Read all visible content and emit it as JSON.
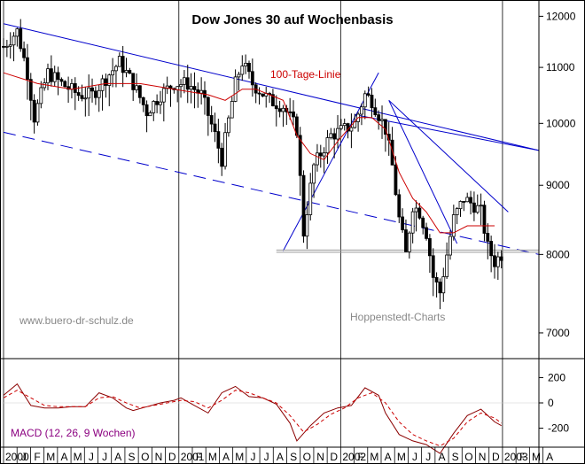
{
  "chart_data": {
    "type": "candlestick",
    "title": "Dow Jones 30 auf Wochenbasis",
    "watermark_left": "www.buero-dr-schulz.de",
    "watermark_right": "Hoppenstedt-Charts",
    "ma_label": "100-Tage-Linie",
    "macd_label": "MACD (12, 26, 9 Wochen)",
    "y_scale": "log",
    "ylim": [
      6700,
      12300
    ],
    "y_ticks": [
      {
        "value": 7000,
        "label": "7000"
      },
      {
        "value": 8000,
        "label": "8000"
      },
      {
        "value": 9000,
        "label": "9000"
      },
      {
        "value": 10000,
        "label": "10000"
      },
      {
        "value": 11000,
        "label": "11000"
      },
      {
        "value": 12000,
        "label": "12000"
      }
    ],
    "macd_ylim": [
      -350,
      350
    ],
    "macd_ticks": [
      {
        "value": 200,
        "label": "200"
      },
      {
        "value": 0,
        "label": "0"
      },
      {
        "value": -200,
        "label": "-200"
      }
    ],
    "month_labels": [
      "2000",
      "J",
      "F",
      "M",
      "A",
      "M",
      "J",
      "J",
      "A",
      "S",
      "O",
      "N",
      "D",
      "2001",
      "F",
      "M",
      "A",
      "M",
      "J",
      "J",
      "A",
      "S",
      "O",
      "N",
      "D",
      "2002",
      "F",
      "M",
      "A",
      "M",
      "J",
      "J",
      "A",
      "S",
      "O",
      "N",
      "D",
      "2003",
      "F",
      "M",
      "A"
    ],
    "weekly_close": [
      {
        "week": 0,
        "value": 11400
      },
      {
        "week": 4,
        "value": 11700
      },
      {
        "week": 7,
        "value": 10900
      },
      {
        "week": 9,
        "value": 10100
      },
      {
        "week": 13,
        "value": 10900
      },
      {
        "week": 17,
        "value": 10700
      },
      {
        "week": 22,
        "value": 10500
      },
      {
        "week": 26,
        "value": 10500
      },
      {
        "week": 30,
        "value": 10800
      },
      {
        "week": 34,
        "value": 11100
      },
      {
        "week": 38,
        "value": 10700
      },
      {
        "week": 42,
        "value": 10200
      },
      {
        "week": 46,
        "value": 10500
      },
      {
        "week": 50,
        "value": 10700
      },
      {
        "week": 54,
        "value": 10700
      },
      {
        "week": 58,
        "value": 10500
      },
      {
        "week": 62,
        "value": 9800
      },
      {
        "week": 64,
        "value": 9400
      },
      {
        "week": 68,
        "value": 10700
      },
      {
        "week": 70,
        "value": 11100
      },
      {
        "week": 73,
        "value": 10700
      },
      {
        "week": 78,
        "value": 10400
      },
      {
        "week": 82,
        "value": 10300
      },
      {
        "week": 86,
        "value": 9900
      },
      {
        "week": 88,
        "value": 8300
      },
      {
        "week": 91,
        "value": 9300
      },
      {
        "week": 96,
        "value": 9800
      },
      {
        "week": 100,
        "value": 9900
      },
      {
        "week": 103,
        "value": 10000
      },
      {
        "week": 106,
        "value": 10500
      },
      {
        "week": 108,
        "value": 10400
      },
      {
        "week": 112,
        "value": 9900
      },
      {
        "week": 114,
        "value": 9300
      },
      {
        "week": 116,
        "value": 8500
      },
      {
        "week": 118,
        "value": 8000
      },
      {
        "week": 120,
        "value": 8700
      },
      {
        "week": 122,
        "value": 8600
      },
      {
        "week": 124,
        "value": 8300
      },
      {
        "week": 126,
        "value": 7700
      },
      {
        "week": 128,
        "value": 7500
      },
      {
        "week": 130,
        "value": 8000
      },
      {
        "week": 132,
        "value": 8500
      },
      {
        "week": 135,
        "value": 8800
      },
      {
        "week": 138,
        "value": 8700
      },
      {
        "week": 140,
        "value": 8600
      },
      {
        "week": 142,
        "value": 8100
      },
      {
        "week": 144,
        "value": 7900
      },
      {
        "week": 146,
        "value": 8000
      }
    ],
    "moving_average_100d": [
      {
        "week": 0,
        "value": 10900
      },
      {
        "week": 10,
        "value": 10700
      },
      {
        "week": 20,
        "value": 10600
      },
      {
        "week": 30,
        "value": 10700
      },
      {
        "week": 40,
        "value": 10700
      },
      {
        "week": 50,
        "value": 10600
      },
      {
        "week": 60,
        "value": 10500
      },
      {
        "week": 65,
        "value": 10400
      },
      {
        "week": 70,
        "value": 10600
      },
      {
        "week": 74,
        "value": 10600
      },
      {
        "week": 78,
        "value": 10500
      },
      {
        "week": 82,
        "value": 10400
      },
      {
        "week": 86,
        "value": 9800
      },
      {
        "week": 90,
        "value": 9500
      },
      {
        "week": 94,
        "value": 9400
      },
      {
        "week": 98,
        "value": 9700
      },
      {
        "week": 104,
        "value": 10100
      },
      {
        "week": 108,
        "value": 10100
      },
      {
        "week": 112,
        "value": 9900
      },
      {
        "week": 116,
        "value": 9200
      },
      {
        "week": 120,
        "value": 8800
      },
      {
        "week": 124,
        "value": 8600
      },
      {
        "week": 128,
        "value": 8300
      },
      {
        "week": 132,
        "value": 8300
      },
      {
        "week": 136,
        "value": 8400
      },
      {
        "week": 140,
        "value": 8400
      },
      {
        "week": 144,
        "value": 8400
      }
    ],
    "macd": [
      {
        "week": 0,
        "value": 60
      },
      {
        "week": 4,
        "value": 150
      },
      {
        "week": 8,
        "value": -20
      },
      {
        "week": 12,
        "value": -40
      },
      {
        "week": 16,
        "value": -40
      },
      {
        "week": 20,
        "value": -30
      },
      {
        "week": 24,
        "value": -30
      },
      {
        "week": 28,
        "value": 80
      },
      {
        "week": 32,
        "value": 40
      },
      {
        "week": 36,
        "value": -40
      },
      {
        "week": 38,
        "value": -60
      },
      {
        "week": 42,
        "value": -30
      },
      {
        "week": 46,
        "value": 0
      },
      {
        "week": 50,
        "value": 20
      },
      {
        "week": 52,
        "value": 40
      },
      {
        "week": 56,
        "value": -20
      },
      {
        "week": 60,
        "value": -80
      },
      {
        "week": 64,
        "value": 80
      },
      {
        "week": 68,
        "value": 130
      },
      {
        "week": 72,
        "value": 50
      },
      {
        "week": 76,
        "value": 40
      },
      {
        "week": 80,
        "value": -10
      },
      {
        "week": 84,
        "value": -160
      },
      {
        "week": 86,
        "value": -300
      },
      {
        "week": 90,
        "value": -180
      },
      {
        "week": 94,
        "value": -80
      },
      {
        "week": 98,
        "value": -40
      },
      {
        "week": 102,
        "value": -20
      },
      {
        "week": 106,
        "value": 120
      },
      {
        "week": 110,
        "value": 60
      },
      {
        "week": 112,
        "value": -80
      },
      {
        "week": 116,
        "value": -250
      },
      {
        "week": 120,
        "value": -300
      },
      {
        "week": 124,
        "value": -330
      },
      {
        "week": 128,
        "value": -400
      },
      {
        "week": 132,
        "value": -240
      },
      {
        "week": 136,
        "value": -100
      },
      {
        "week": 140,
        "value": -50
      },
      {
        "week": 144,
        "value": -150
      },
      {
        "week": 146,
        "value": -180
      }
    ],
    "macd_signal": [
      {
        "week": 0,
        "value": 40
      },
      {
        "week": 4,
        "value": 100
      },
      {
        "week": 8,
        "value": 40
      },
      {
        "week": 12,
        "value": -20
      },
      {
        "week": 16,
        "value": -30
      },
      {
        "week": 20,
        "value": -30
      },
      {
        "week": 24,
        "value": -30
      },
      {
        "week": 28,
        "value": 40
      },
      {
        "week": 32,
        "value": 50
      },
      {
        "week": 36,
        "value": 0
      },
      {
        "week": 40,
        "value": -40
      },
      {
        "week": 44,
        "value": -20
      },
      {
        "week": 48,
        "value": 0
      },
      {
        "week": 52,
        "value": 20
      },
      {
        "week": 56,
        "value": 10
      },
      {
        "week": 60,
        "value": -40
      },
      {
        "week": 64,
        "value": 20
      },
      {
        "week": 68,
        "value": 100
      },
      {
        "week": 72,
        "value": 80
      },
      {
        "week": 76,
        "value": 40
      },
      {
        "week": 80,
        "value": 0
      },
      {
        "week": 84,
        "value": -100
      },
      {
        "week": 88,
        "value": -230
      },
      {
        "week": 92,
        "value": -170
      },
      {
        "week": 96,
        "value": -90
      },
      {
        "week": 100,
        "value": -40
      },
      {
        "week": 104,
        "value": 40
      },
      {
        "week": 108,
        "value": 80
      },
      {
        "week": 112,
        "value": 0
      },
      {
        "week": 116,
        "value": -150
      },
      {
        "week": 120,
        "value": -250
      },
      {
        "week": 124,
        "value": -300
      },
      {
        "week": 128,
        "value": -340
      },
      {
        "week": 132,
        "value": -280
      },
      {
        "week": 136,
        "value": -150
      },
      {
        "week": 140,
        "value": -80
      },
      {
        "week": 144,
        "value": -120
      },
      {
        "week": 146,
        "value": -160
      }
    ],
    "colors": {
      "price": "#000000",
      "ma": "#cc0000",
      "trend": "#0000cc",
      "macd": "#8b0000",
      "signal": "#cc0000",
      "support": "#999999",
      "label": "#8b0080"
    }
  }
}
